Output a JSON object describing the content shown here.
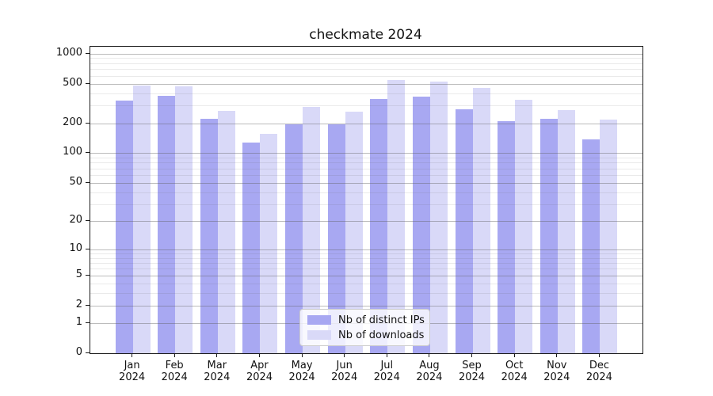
{
  "chart_data": {
    "type": "bar",
    "title": "checkmate 2024",
    "categories": [
      "Jan",
      "Feb",
      "Mar",
      "Apr",
      "May",
      "Jun",
      "Jul",
      "Aug",
      "Sep",
      "Oct",
      "Nov",
      "Dec"
    ],
    "x_year_label": "2024",
    "series": [
      {
        "name": "Nb of distinct IPs",
        "color": "#a8a8f2",
        "values": [
          340,
          378,
          221,
          127,
          193,
          196,
          352,
          371,
          274,
          208,
          221,
          138
        ]
      },
      {
        "name": "Nb of downloads",
        "color": "#d9d9f8",
        "values": [
          478,
          468,
          267,
          156,
          291,
          263,
          546,
          520,
          452,
          345,
          271,
          218
        ]
      }
    ],
    "y_scale": "log1p",
    "ylim": [
      0,
      1170
    ],
    "y_ticks": [
      0,
      1,
      2,
      5,
      10,
      20,
      50,
      100,
      200,
      500,
      1000
    ],
    "y_minor_ticks": [
      3,
      4,
      6,
      7,
      8,
      9,
      30,
      40,
      60,
      70,
      80,
      90,
      300,
      400,
      600,
      700,
      800,
      900
    ],
    "grid": true,
    "legend_position": "lower center"
  }
}
